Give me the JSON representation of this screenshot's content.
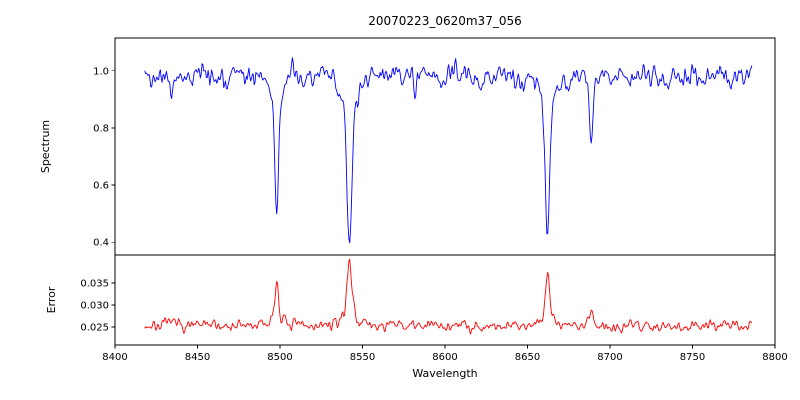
{
  "figure": {
    "title": "20070223_0620m37_056",
    "xlabel": "Wavelength",
    "background_color": "#ffffff",
    "axis_color": "#000000"
  },
  "chart_data": [
    {
      "type": "line",
      "panel": "spectrum",
      "ylabel": "Spectrum",
      "color": "#0000ff",
      "grid": false,
      "legend": null,
      "xlim": [
        8400,
        8800
      ],
      "ylim": [
        0.355,
        1.115
      ],
      "xticks": [
        8400,
        8450,
        8500,
        8550,
        8600,
        8650,
        8700,
        8750,
        8800
      ],
      "xtick_labels": [
        "8400",
        "8450",
        "8500",
        "8550",
        "8600",
        "8650",
        "8700",
        "8750",
        "8800"
      ],
      "yticks": [
        0.4,
        0.6,
        0.8,
        1.0
      ],
      "ytick_labels": [
        "0.4",
        "0.6",
        "0.8",
        "1.0"
      ],
      "x_start": 8418,
      "x_end": 8786,
      "n_points": 700,
      "seed": 42,
      "continuum": 0.985,
      "noise_amplitude": 0.085,
      "absorption_lines": [
        {
          "center": 8498.0,
          "depth": 0.47,
          "width": 1.1
        },
        {
          "center": 8542.1,
          "depth": 0.61,
          "width": 1.4
        },
        {
          "center": 8662.1,
          "depth": 0.545,
          "width": 1.3
        },
        {
          "center": 8688.6,
          "depth": 0.21,
          "width": 0.9
        }
      ],
      "weak_lines": [
        {
          "center": 8434.0,
          "depth": 0.075,
          "width": 1.0
        },
        {
          "center": 8468.4,
          "depth": 0.055,
          "width": 0.9
        },
        {
          "center": 8514.1,
          "depth": 0.05,
          "width": 0.9
        },
        {
          "center": 8582.0,
          "depth": 0.045,
          "width": 0.9
        },
        {
          "center": 8598.8,
          "depth": 0.04,
          "width": 0.9
        },
        {
          "center": 8621.0,
          "depth": 0.04,
          "width": 0.9
        },
        {
          "center": 8648.0,
          "depth": 0.035,
          "width": 0.9
        },
        {
          "center": 8674.7,
          "depth": 0.045,
          "width": 0.9
        },
        {
          "center": 8712.0,
          "depth": 0.04,
          "width": 0.9
        },
        {
          "center": 8736.0,
          "depth": 0.035,
          "width": 0.9
        },
        {
          "center": 8757.0,
          "depth": 0.035,
          "width": 0.9
        }
      ]
    },
    {
      "type": "line",
      "panel": "error",
      "ylabel": "Error",
      "color": "#ff0000",
      "grid": false,
      "legend": null,
      "xlim": [
        8400,
        8800
      ],
      "ylim": [
        0.0209,
        0.0414
      ],
      "xticks": [
        8400,
        8450,
        8500,
        8550,
        8600,
        8650,
        8700,
        8750,
        8800
      ],
      "xtick_labels": [
        "8400",
        "8450",
        "8500",
        "8550",
        "8600",
        "8650",
        "8700",
        "8750",
        "8800"
      ],
      "yticks": [
        0.025,
        0.03,
        0.035
      ],
      "ytick_labels": [
        "0.025",
        "0.030",
        "0.035"
      ],
      "x_start": 8418,
      "x_end": 8786,
      "n_points": 700,
      "seed": 7,
      "baseline": 0.0253,
      "noise_amplitude": 0.003,
      "spikes": [
        {
          "center": 8498.0,
          "height": 0.01,
          "width": 1.1
        },
        {
          "center": 8542.1,
          "height": 0.0145,
          "width": 1.4
        },
        {
          "center": 8662.1,
          "height": 0.0115,
          "width": 1.3
        },
        {
          "center": 8688.6,
          "height": 0.0032,
          "width": 0.9
        },
        {
          "center": 8434.0,
          "height": 0.0012,
          "width": 1.0
        }
      ]
    }
  ]
}
